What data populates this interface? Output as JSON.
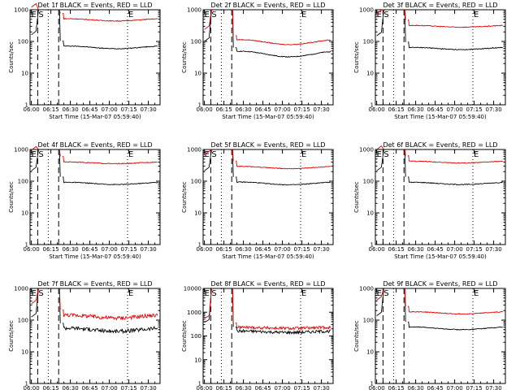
{
  "chart_data": [
    {
      "type": "line",
      "title": "Det 1f BLACK = Events, RED = LLD",
      "xlabel": "Start Time (15-Mar-07 05:59:40)",
      "ylabel": "Counts/sec",
      "ylog": true,
      "ylim": [
        1,
        1000
      ],
      "yticks": [
        "1",
        "10",
        "100",
        "1000"
      ],
      "xticks": [
        "06:00",
        "06:15",
        "06:30",
        "06:45",
        "07:00",
        "07:15",
        "07:30"
      ],
      "markers": {
        "E": "06:00",
        "S": "06:03",
        "E2": "07:14"
      },
      "series": [
        {
          "name": "Events",
          "color": "#000000",
          "level": 65,
          "wave": 0.12
        },
        {
          "name": "LLD",
          "color": "#e00000",
          "level": 480,
          "wave": 0.1
        }
      ]
    },
    {
      "type": "line",
      "title": "Det 2f BLACK = Events, RED = LLD",
      "xlabel": "Start Time (15-Mar-07 05:59:40)",
      "ylabel": "Counts/sec",
      "ylog": true,
      "ylim": [
        1,
        1000
      ],
      "yticks": [
        "1",
        "10",
        "100",
        "1000"
      ],
      "xticks": [
        "06:00",
        "06:15",
        "06:30",
        "06:45",
        "07:00",
        "07:15",
        "07:30"
      ],
      "markers": {
        "E": "06:00",
        "S": "06:03",
        "E2": "07:14"
      },
      "series": [
        {
          "name": "Events",
          "color": "#000000",
          "level": 40,
          "wave": 0.25
        },
        {
          "name": "LLD",
          "color": "#e00000",
          "level": 95,
          "wave": 0.22
        }
      ]
    },
    {
      "type": "line",
      "title": "Det 3f BLACK = Events, RED = LLD",
      "xlabel": "Start Time (15-Mar-07 05:59:40)",
      "ylabel": "Counts/sec",
      "ylog": true,
      "ylim": [
        1,
        1000
      ],
      "yticks": [
        "1",
        "10",
        "100",
        "1000"
      ],
      "xticks": [
        "06:00",
        "06:15",
        "06:30",
        "06:45",
        "07:00",
        "07:15",
        "07:30"
      ],
      "markers": {
        "E": "06:00",
        "S": "06:03",
        "E2": "07:14"
      },
      "series": [
        {
          "name": "Events",
          "color": "#000000",
          "level": 60,
          "wave": 0.1
        },
        {
          "name": "LLD",
          "color": "#e00000",
          "level": 300,
          "wave": 0.08
        }
      ]
    },
    {
      "type": "line",
      "title": "Det 4f BLACK = Events, RED = LLD",
      "xlabel": "Start Time (15-Mar-07 05:59:40)",
      "ylabel": "Counts/sec",
      "ylog": true,
      "ylim": [
        1,
        1000
      ],
      "yticks": [
        "1",
        "10",
        "100",
        "1000"
      ],
      "xticks": [
        "06:00",
        "06:15",
        "06:30",
        "06:45",
        "07:00",
        "07:15",
        "07:30"
      ],
      "markers": {
        "E": "06:00",
        "S": "06:03",
        "E2": "07:14"
      },
      "series": [
        {
          "name": "Events",
          "color": "#000000",
          "level": 85,
          "wave": 0.1
        },
        {
          "name": "LLD",
          "color": "#e00000",
          "level": 380,
          "wave": 0.08
        }
      ]
    },
    {
      "type": "line",
      "title": "Det 5f BLACK = Events, RED = LLD",
      "xlabel": "Start Time (15-Mar-07 05:59:40)",
      "ylabel": "Counts/sec",
      "ylog": true,
      "ylim": [
        1,
        1000
      ],
      "yticks": [
        "1",
        "10",
        "100",
        "1000"
      ],
      "xticks": [
        "06:00",
        "06:15",
        "06:30",
        "06:45",
        "07:00",
        "07:15",
        "07:30"
      ],
      "markers": {
        "E": "06:00",
        "S": "06:03",
        "E2": "07:14"
      },
      "series": [
        {
          "name": "Events",
          "color": "#000000",
          "level": 85,
          "wave": 0.12
        },
        {
          "name": "LLD",
          "color": "#e00000",
          "level": 270,
          "wave": 0.1
        }
      ]
    },
    {
      "type": "line",
      "title": "Det 6f BLACK = Events, RED = LLD",
      "xlabel": "Start Time (15-Mar-07 05:59:40)",
      "ylabel": "Counts/sec",
      "ylog": true,
      "ylim": [
        1,
        1000
      ],
      "yticks": [
        "1",
        "10",
        "100",
        "1000"
      ],
      "xticks": [
        "06:00",
        "06:15",
        "06:30",
        "06:45",
        "07:00",
        "07:15",
        "07:30"
      ],
      "markers": {
        "E": "06:00",
        "S": "06:03",
        "E2": "07:14"
      },
      "series": [
        {
          "name": "Events",
          "color": "#000000",
          "level": 85,
          "wave": 0.1
        },
        {
          "name": "LLD",
          "color": "#e00000",
          "level": 400,
          "wave": 0.08
        }
      ]
    },
    {
      "type": "line",
      "title": "Det 7f BLACK = Events, RED = LLD",
      "xlabel": "Start Time (15-Mar-07 05:59:40)",
      "ylabel": "Counts/sec",
      "ylog": true,
      "ylim": [
        1,
        1000
      ],
      "yticks": [
        "1",
        "10",
        "100",
        "1000"
      ],
      "xticks": [
        "06:00",
        "06:15",
        "06:30",
        "06:45",
        "07:00",
        "07:15",
        "07:30"
      ],
      "markers": {
        "E": "06:00",
        "S": "06:03",
        "E2": "07:14"
      },
      "series": [
        {
          "name": "Events",
          "color": "#000000",
          "level": 50,
          "wave": 0.15
        },
        {
          "name": "LLD",
          "color": "#e00000",
          "level": 130,
          "wave": 0.13
        }
      ]
    },
    {
      "type": "line",
      "title": "Det 8f BLACK = Events, RED = LLD",
      "xlabel": "Start Time (15-Mar-07 05:59:40)",
      "ylabel": "Counts/sec",
      "ylog": true,
      "ylim": [
        1,
        10000
      ],
      "yticks": [
        "1",
        "10",
        "100",
        "1000",
        "10000"
      ],
      "xticks": [
        "06:00",
        "06:15",
        "06:30",
        "06:45",
        "07:00",
        "07:15",
        "07:30"
      ],
      "markers": {
        "E": "06:00",
        "S": "06:03",
        "E2": "07:14"
      },
      "series": [
        {
          "name": "Events",
          "color": "#000000",
          "level": 150,
          "wave": 0.08
        },
        {
          "name": "LLD",
          "color": "#e00000",
          "level": 220,
          "wave": 0.06
        }
      ]
    },
    {
      "type": "line",
      "title": "Det 9f BLACK = Events, RED = LLD",
      "xlabel": "Start Time (15-Mar-07 05:59:40)",
      "ylabel": "Counts/sec",
      "ylog": true,
      "ylim": [
        1,
        1000
      ],
      "yticks": [
        "1",
        "10",
        "100",
        "1000"
      ],
      "xticks": [
        "06:00",
        "06:15",
        "06:30",
        "06:45",
        "07:00",
        "07:15",
        "07:30"
      ],
      "markers": {
        "E": "06:00",
        "S": "06:03",
        "E2": "07:14"
      },
      "series": [
        {
          "name": "Events",
          "color": "#000000",
          "level": 55,
          "wave": 0.12
        },
        {
          "name": "LLD",
          "color": "#e00000",
          "level": 170,
          "wave": 0.1
        }
      ]
    }
  ]
}
